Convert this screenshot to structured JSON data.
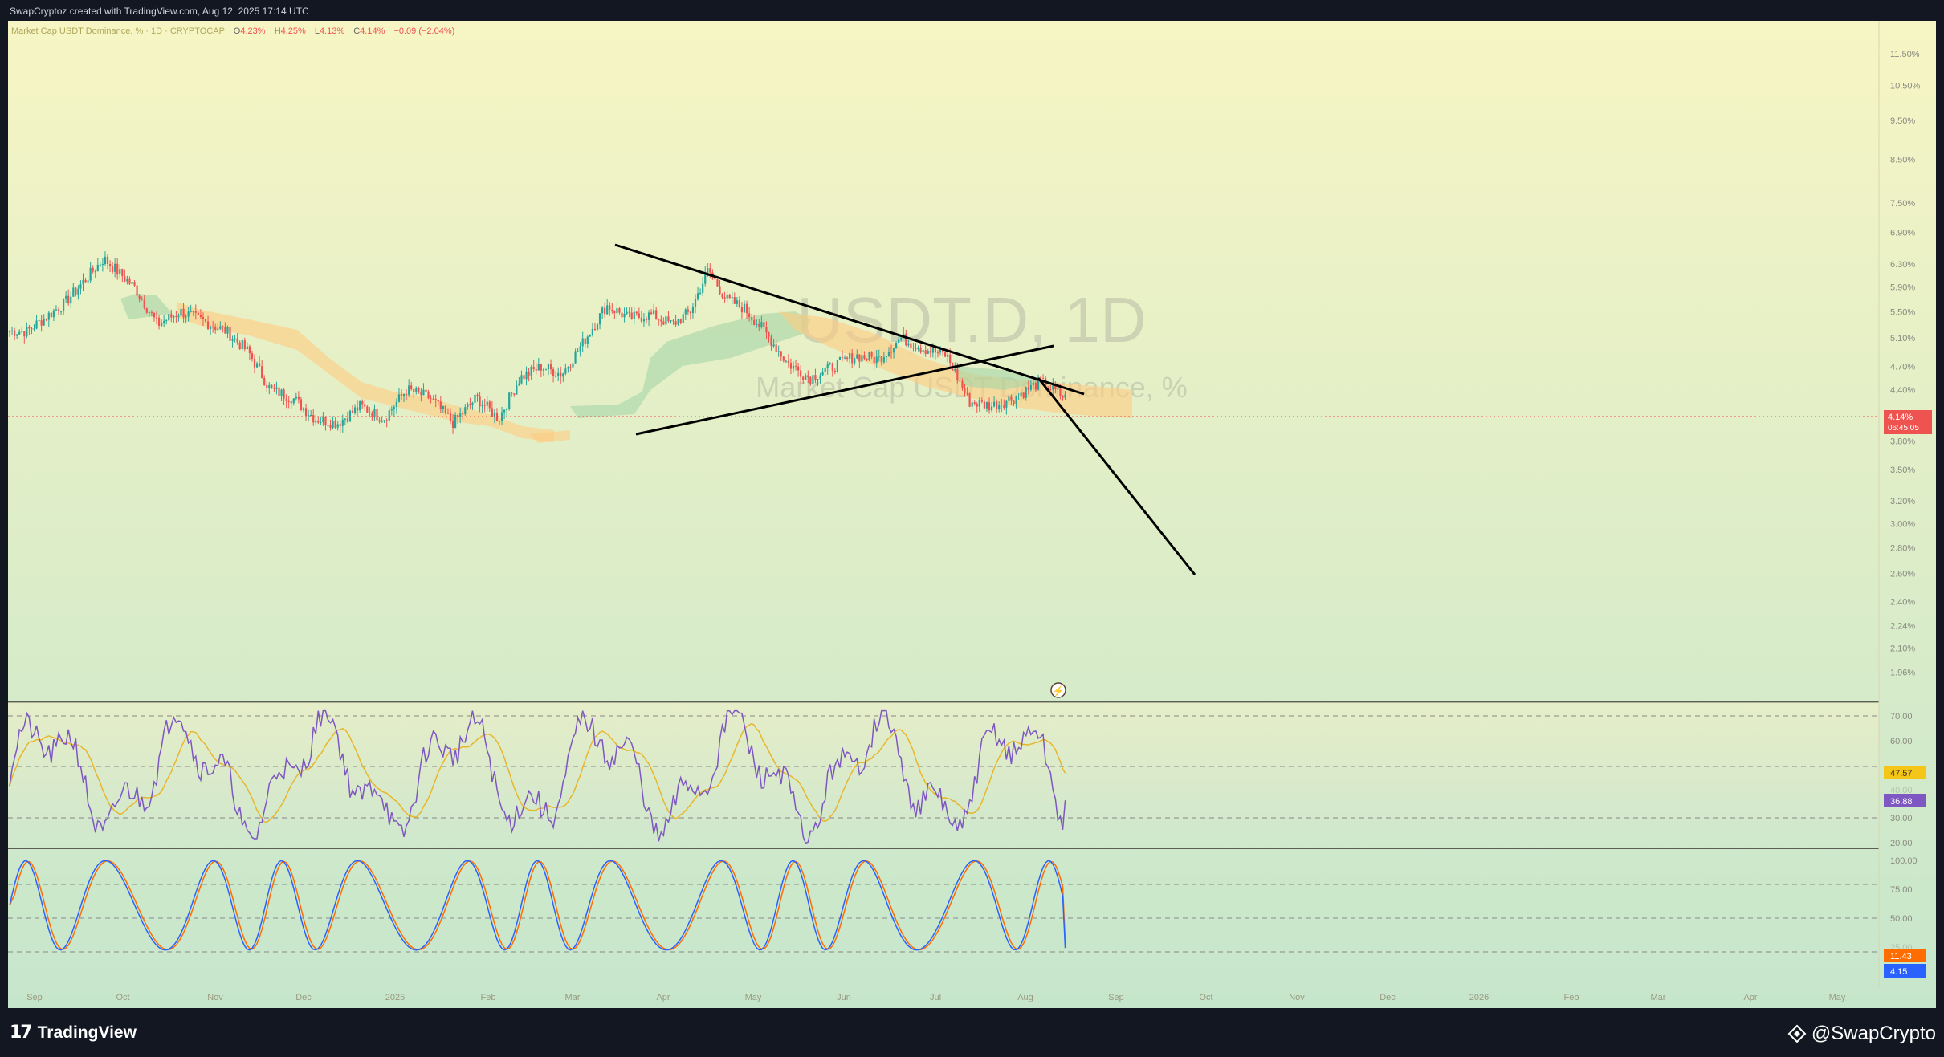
{
  "header": {
    "attribution": "SwapCryptoz created with TradingView.com, Aug 12, 2025 17:14 UTC"
  },
  "legend": {
    "symbol_desc": "Market Cap USDT Dominance, % · 1D · CRYPTOCAP",
    "open_label": "O",
    "open": "4.23%",
    "high_label": "H",
    "high": "4.25%",
    "low_label": "L",
    "low": "4.13%",
    "close_label": "C",
    "close": "4.14%",
    "change": "−0.09 (−2.04%)"
  },
  "watermark": {
    "ticker": "USDT.D, 1D",
    "name": "Market Cap USDT Dominance, %"
  },
  "price_axis": {
    "ticks": [
      "11.50%",
      "10.50%",
      "9.50%",
      "8.50%",
      "7.50%",
      "6.90%",
      "6.30%",
      "5.90%",
      "5.50%",
      "5.10%",
      "4.70%",
      "4.40%",
      "3.80%",
      "3.50%",
      "3.20%",
      "3.00%",
      "2.80%",
      "2.60%",
      "2.40%",
      "2.24%",
      "2.10%",
      "1.96%"
    ],
    "last_price": "4.14%",
    "countdown": "06:45:05"
  },
  "rsi_axis": {
    "ticks": [
      "70.00",
      "60.00",
      "30.00",
      "20.00"
    ],
    "faded_tick": "40.00",
    "ma_value": "47.57",
    "rsi_value": "36.88"
  },
  "stoch_axis": {
    "ticks": [
      "100.00",
      "75.00",
      "50.00"
    ],
    "faded_tick": "25.00",
    "d_value": "11.43",
    "k_value": "4.15"
  },
  "time_axis": {
    "labels": [
      "Sep",
      "Oct",
      "Nov",
      "Dec",
      "2025",
      "Feb",
      "Mar",
      "Apr",
      "May",
      "Jun",
      "Jul",
      "Aug",
      "Sep",
      "Oct",
      "Nov",
      "Dec",
      "2026",
      "Feb",
      "Mar",
      "Apr",
      "May"
    ]
  },
  "footer": {
    "logo_text": "TradingView",
    "brand": "@SwapCrypto"
  },
  "colors": {
    "up": "#26a69a",
    "down": "#ef5350",
    "rsi_line": "#7e57c2",
    "rsi_ma": "#f0c040",
    "stoch_k": "#2962ff",
    "stoch_d": "#ff6d00",
    "cloud_bull": "#a5d6a7",
    "cloud_bear": "#ffcc80",
    "trendline": "#000000"
  },
  "chart_data": [
    {
      "type": "candlestick",
      "title": "USDT.D, 1D",
      "y_scale": "log",
      "ylim": [
        1.96,
        11.5
      ],
      "x_months": [
        "Sep",
        "Oct",
        "Nov",
        "Dec",
        "2025",
        "Feb",
        "Mar",
        "Apr",
        "May",
        "Jun",
        "Jul",
        "Aug"
      ],
      "close_path": [
        {
          "t": "Sep",
          "v": 5.2
        },
        {
          "t": "Sep",
          "v": 5.65
        },
        {
          "t": "Sep",
          "v": 6.4
        },
        {
          "t": "Oct",
          "v": 5.9
        },
        {
          "t": "Oct",
          "v": 5.3
        },
        {
          "t": "Oct",
          "v": 5.5
        },
        {
          "t": "Oct",
          "v": 5.35
        },
        {
          "t": "Nov",
          "v": 5.2
        },
        {
          "t": "Nov",
          "v": 4.9
        },
        {
          "t": "Nov",
          "v": 4.4
        },
        {
          "t": "Nov",
          "v": 4.3
        },
        {
          "t": "Dec",
          "v": 4.05
        },
        {
          "t": "Dec",
          "v": 4.0
        },
        {
          "t": "Dec",
          "v": 4.2
        },
        {
          "t": "Dec",
          "v": 4.05
        },
        {
          "t": "2025",
          "v": 4.4
        },
        {
          "t": "2025",
          "v": 4.3
        },
        {
          "t": "2025",
          "v": 4.0
        },
        {
          "t": "2025",
          "v": 4.3
        },
        {
          "t": "Feb",
          "v": 4.05
        },
        {
          "t": "Feb",
          "v": 4.55
        },
        {
          "t": "Feb",
          "v": 4.7
        },
        {
          "t": "Feb",
          "v": 4.6
        },
        {
          "t": "Mar",
          "v": 5.05
        },
        {
          "t": "Mar",
          "v": 5.6
        },
        {
          "t": "Mar",
          "v": 5.4
        },
        {
          "t": "Mar",
          "v": 5.45
        },
        {
          "t": "Apr",
          "v": 5.3
        },
        {
          "t": "Apr",
          "v": 5.5
        },
        {
          "t": "Apr",
          "v": 6.2
        },
        {
          "t": "Apr",
          "v": 5.7
        },
        {
          "t": "Apr",
          "v": 5.55
        },
        {
          "t": "May",
          "v": 5.2
        },
        {
          "t": "May",
          "v": 4.75
        },
        {
          "t": "May",
          "v": 4.55
        },
        {
          "t": "May",
          "v": 4.7
        },
        {
          "t": "Jun",
          "v": 4.85
        },
        {
          "t": "Jun",
          "v": 4.8
        },
        {
          "t": "Jun",
          "v": 5.1
        },
        {
          "t": "Jun",
          "v": 4.95
        },
        {
          "t": "Jul",
          "v": 4.85
        },
        {
          "t": "Jul",
          "v": 4.25
        },
        {
          "t": "Jul",
          "v": 4.2
        },
        {
          "t": "Jul",
          "v": 4.3
        },
        {
          "t": "Aug",
          "v": 4.5
        },
        {
          "t": "Aug",
          "v": 4.25
        },
        {
          "t": "Aug",
          "v": 4.14
        }
      ],
      "last_price": 4.14,
      "annotations": [
        "descending trendline from Mar high",
        "ascending trendline from Mar low",
        "projection toward ~2.8% by Sep"
      ]
    },
    {
      "type": "line",
      "title": "RSI",
      "ylim": [
        20,
        72
      ],
      "bands": [
        30,
        50,
        70
      ],
      "last": {
        "rsi": 36.88,
        "ma": 47.57
      }
    },
    {
      "type": "line",
      "title": "Stoch RSI",
      "ylim": [
        0,
        100
      ],
      "bands": [
        20,
        50,
        80
      ],
      "last": {
        "k": 4.15,
        "d": 11.43
      }
    }
  ]
}
